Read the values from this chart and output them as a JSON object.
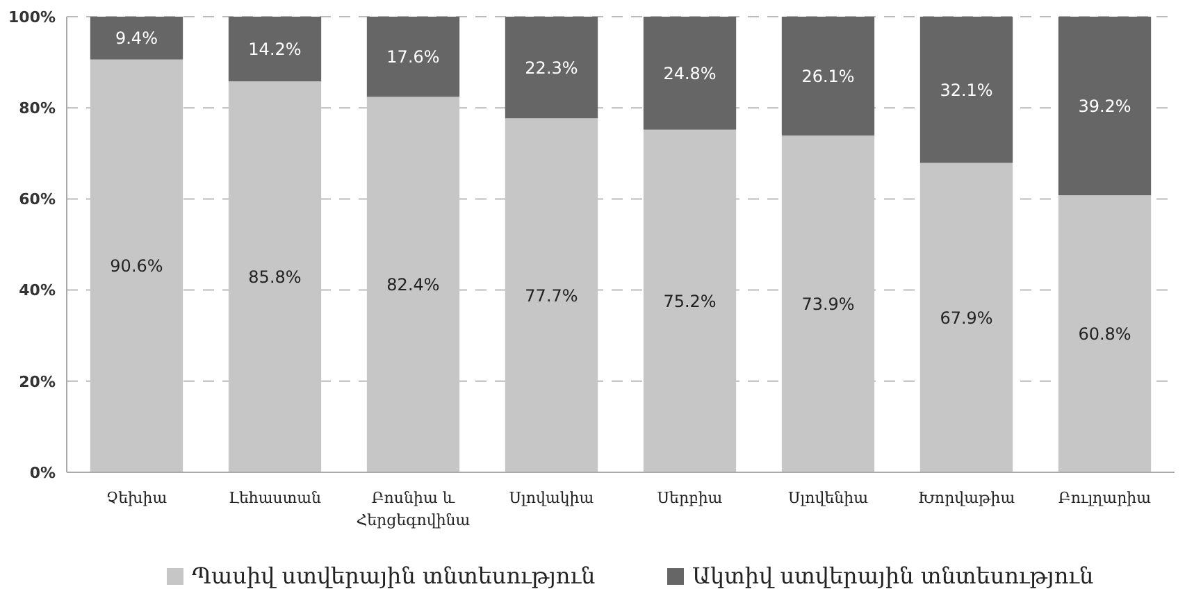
{
  "chart_data": {
    "type": "bar",
    "stacked": true,
    "categories": [
      "Չեխիա",
      "Լեհաստան",
      "Բոսնիա և Հերցեգովինա",
      "Սլովակիա",
      "Սերբիա",
      "Սլովենիա",
      "Խորվաթիա",
      "Բուլղարիա"
    ],
    "series": [
      {
        "name": "Պասիվ ստվերային տնտեսություն",
        "color": "#c6c6c6",
        "values": [
          90.6,
          85.8,
          82.4,
          77.7,
          75.2,
          73.9,
          67.9,
          60.8
        ],
        "value_labels": [
          "90.6%",
          "85.8%",
          "82.4%",
          "77.7%",
          "75.2%",
          "73.9%",
          "67.9%",
          "60.8%"
        ]
      },
      {
        "name": "Ակտիվ ստվերային տնտեսություն",
        "color": "#666666",
        "values": [
          9.4,
          14.2,
          17.6,
          22.3,
          24.8,
          26.1,
          32.1,
          39.2
        ],
        "value_labels": [
          "9.4%",
          "14.2%",
          "17.6%",
          "22.3%",
          "24.8%",
          "26.1%",
          "32.1%",
          "39.2%"
        ]
      }
    ],
    "ylim": [
      0,
      100
    ],
    "yticks": [
      {
        "value": 0,
        "label": "0%"
      },
      {
        "value": 20,
        "label": "20%"
      },
      {
        "value": 40,
        "label": "40%"
      },
      {
        "value": 60,
        "label": "60%"
      },
      {
        "value": 80,
        "label": "80%"
      },
      {
        "value": 100,
        "label": "100%"
      }
    ],
    "grid": "y",
    "legend": "bottom"
  }
}
